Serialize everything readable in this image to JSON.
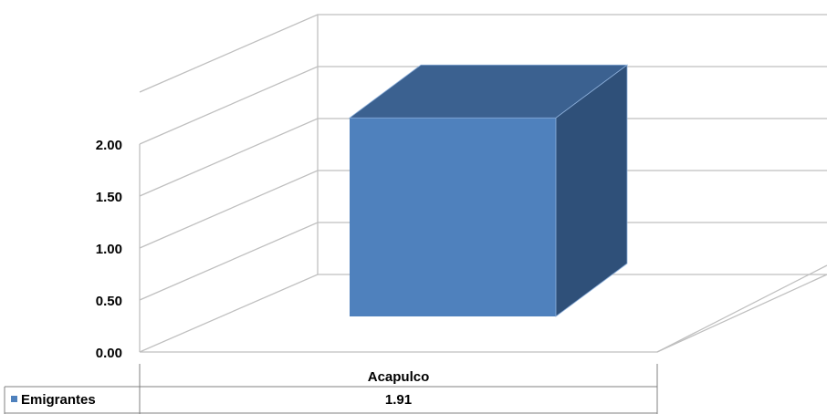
{
  "chart_data": {
    "type": "bar",
    "style": "3d-column-with-data-table",
    "categories": [
      "Acapulco"
    ],
    "series": [
      {
        "name": "Emigrantes",
        "values": [
          1.91
        ],
        "color": "#4F81BD"
      }
    ],
    "y_ticks": [
      "0.00",
      "0.50",
      "1.00",
      "1.50",
      "2.00"
    ],
    "ylim": [
      0,
      2.5
    ],
    "grid": true,
    "legend": "data-table-left",
    "data_table": {
      "header": [
        "Acapulco"
      ],
      "rows": [
        {
          "label": "Emigrantes",
          "values": [
            "1.91"
          ]
        }
      ]
    },
    "colors": {
      "bar_front": "#4F81BD",
      "bar_top": "#3B6190",
      "bar_side": "#2F5079",
      "grid": "#BFBFBF"
    }
  }
}
